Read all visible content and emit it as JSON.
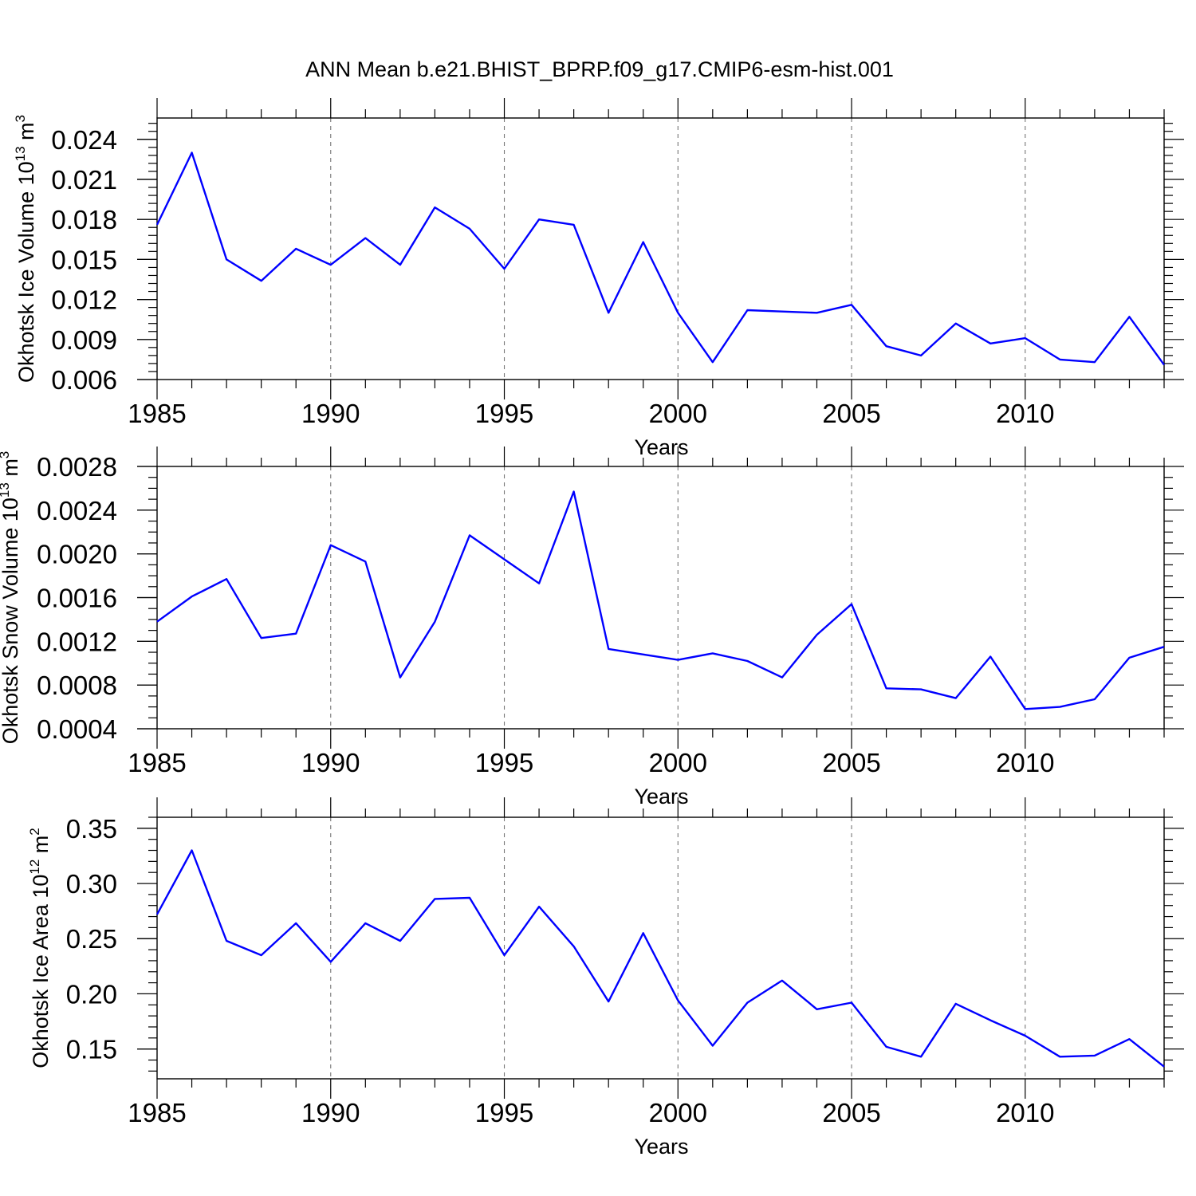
{
  "title": "ANN Mean b.e21.BHIST_BPRP.f09_g17.CMIP6-esm-hist.001",
  "colors": {
    "series": "#0000ff",
    "axis": "#000000",
    "grid": "#777777"
  },
  "chart_data": [
    {
      "type": "line",
      "xlabel": "Years",
      "ylabel_main": "Okhotsk Ice Volume 10",
      "ylabel_exp": "13",
      "ylabel_unit": " m",
      "ylabel_unit_exp": "3",
      "xlim": [
        1985,
        2014
      ],
      "ylim": [
        0.006,
        0.0256
      ],
      "xticks": [
        1985,
        1990,
        1995,
        2000,
        2005,
        2010
      ],
      "xtick_labels": [
        "1985",
        "1990",
        "1995",
        "2000",
        "2005",
        "2010"
      ],
      "yticks": [
        0.006,
        0.009,
        0.012,
        0.015,
        0.018,
        0.021,
        0.024
      ],
      "ytick_labels": [
        "0.006",
        "0.009",
        "0.012",
        "0.015",
        "0.018",
        "0.021",
        "0.024"
      ],
      "yminor_step": 0.0006,
      "grid": "x-dashed",
      "series": [
        {
          "name": "Okhotsk Ice Volume",
          "x": [
            1985,
            1986,
            1987,
            1988,
            1989,
            1990,
            1991,
            1992,
            1993,
            1994,
            1995,
            1996,
            1997,
            1998,
            1999,
            2000,
            2001,
            2002,
            2003,
            2004,
            2005,
            2006,
            2007,
            2008,
            2009,
            2010,
            2011,
            2012,
            2013,
            2014
          ],
          "values": [
            0.0176,
            0.023,
            0.015,
            0.0134,
            0.0158,
            0.0146,
            0.0166,
            0.0146,
            0.0189,
            0.0173,
            0.0143,
            0.018,
            0.0176,
            0.011,
            0.0163,
            0.011,
            0.0073,
            0.0112,
            0.0111,
            0.011,
            0.0116,
            0.0085,
            0.0078,
            0.0102,
            0.0087,
            0.0091,
            0.0075,
            0.0073,
            0.0107,
            0.0071
          ]
        }
      ]
    },
    {
      "type": "line",
      "xlabel": "Years",
      "ylabel_main": "Okhotsk Snow Volume 10",
      "ylabel_exp": "13",
      "ylabel_unit": " m",
      "ylabel_unit_exp": "3",
      "xlim": [
        1985,
        2014
      ],
      "ylim": [
        0.0004,
        0.0028
      ],
      "xticks": [
        1985,
        1990,
        1995,
        2000,
        2005,
        2010
      ],
      "xtick_labels": [
        "1985",
        "1990",
        "1995",
        "2000",
        "2005",
        "2010"
      ],
      "yticks": [
        0.0004,
        0.0008,
        0.0012,
        0.0016,
        0.002,
        0.0024,
        0.0028
      ],
      "ytick_labels": [
        "0.0004",
        "0.0008",
        "0.0012",
        "0.0016",
        "0.0020",
        "0.0024",
        "0.0028"
      ],
      "yminor_step": 0.0001,
      "grid": "x-dashed",
      "series": [
        {
          "name": "Okhotsk Snow Volume",
          "x": [
            1985,
            1986,
            1987,
            1988,
            1989,
            1990,
            1991,
            1992,
            1993,
            1994,
            1995,
            1996,
            1997,
            1998,
            1999,
            2000,
            2001,
            2002,
            2003,
            2004,
            2005,
            2006,
            2007,
            2008,
            2009,
            2010,
            2011,
            2012,
            2013,
            2014
          ],
          "values": [
            0.00138,
            0.00161,
            0.00177,
            0.00123,
            0.00127,
            0.00208,
            0.00193,
            0.00087,
            0.00138,
            0.00217,
            0.00195,
            0.00173,
            0.00257,
            0.00113,
            0.00108,
            0.00103,
            0.00109,
            0.00102,
            0.00087,
            0.00126,
            0.00154,
            0.00077,
            0.00076,
            0.00068,
            0.00106,
            0.00058,
            0.0006,
            0.00067,
            0.00105,
            0.00115
          ]
        }
      ]
    },
    {
      "type": "line",
      "xlabel": "Years",
      "ylabel_main": "Okhotsk Ice Area 10",
      "ylabel_exp": "12",
      "ylabel_unit": " m",
      "ylabel_unit_exp": "2",
      "xlim": [
        1985,
        2014
      ],
      "ylim": [
        0.123,
        0.36
      ],
      "xticks": [
        1985,
        1990,
        1995,
        2000,
        2005,
        2010
      ],
      "xtick_labels": [
        "1985",
        "1990",
        "1995",
        "2000",
        "2005",
        "2010"
      ],
      "yticks": [
        0.15,
        0.2,
        0.25,
        0.3,
        0.35
      ],
      "ytick_labels": [
        "0.15",
        "0.20",
        "0.25",
        "0.30",
        "0.35"
      ],
      "yminor_step": 0.01,
      "grid": "x-dashed",
      "series": [
        {
          "name": "Okhotsk Ice Area",
          "x": [
            1985,
            1986,
            1987,
            1988,
            1989,
            1990,
            1991,
            1992,
            1993,
            1994,
            1995,
            1996,
            1997,
            1998,
            1999,
            2000,
            2001,
            2002,
            2003,
            2004,
            2005,
            2006,
            2007,
            2008,
            2009,
            2010,
            2011,
            2012,
            2013,
            2014
          ],
          "values": [
            0.272,
            0.33,
            0.248,
            0.235,
            0.264,
            0.229,
            0.264,
            0.248,
            0.286,
            0.287,
            0.235,
            0.279,
            0.243,
            0.193,
            0.255,
            0.194,
            0.153,
            0.192,
            0.212,
            0.186,
            0.192,
            0.152,
            0.143,
            0.191,
            0.176,
            0.162,
            0.143,
            0.144,
            0.159,
            0.134
          ]
        }
      ]
    }
  ]
}
